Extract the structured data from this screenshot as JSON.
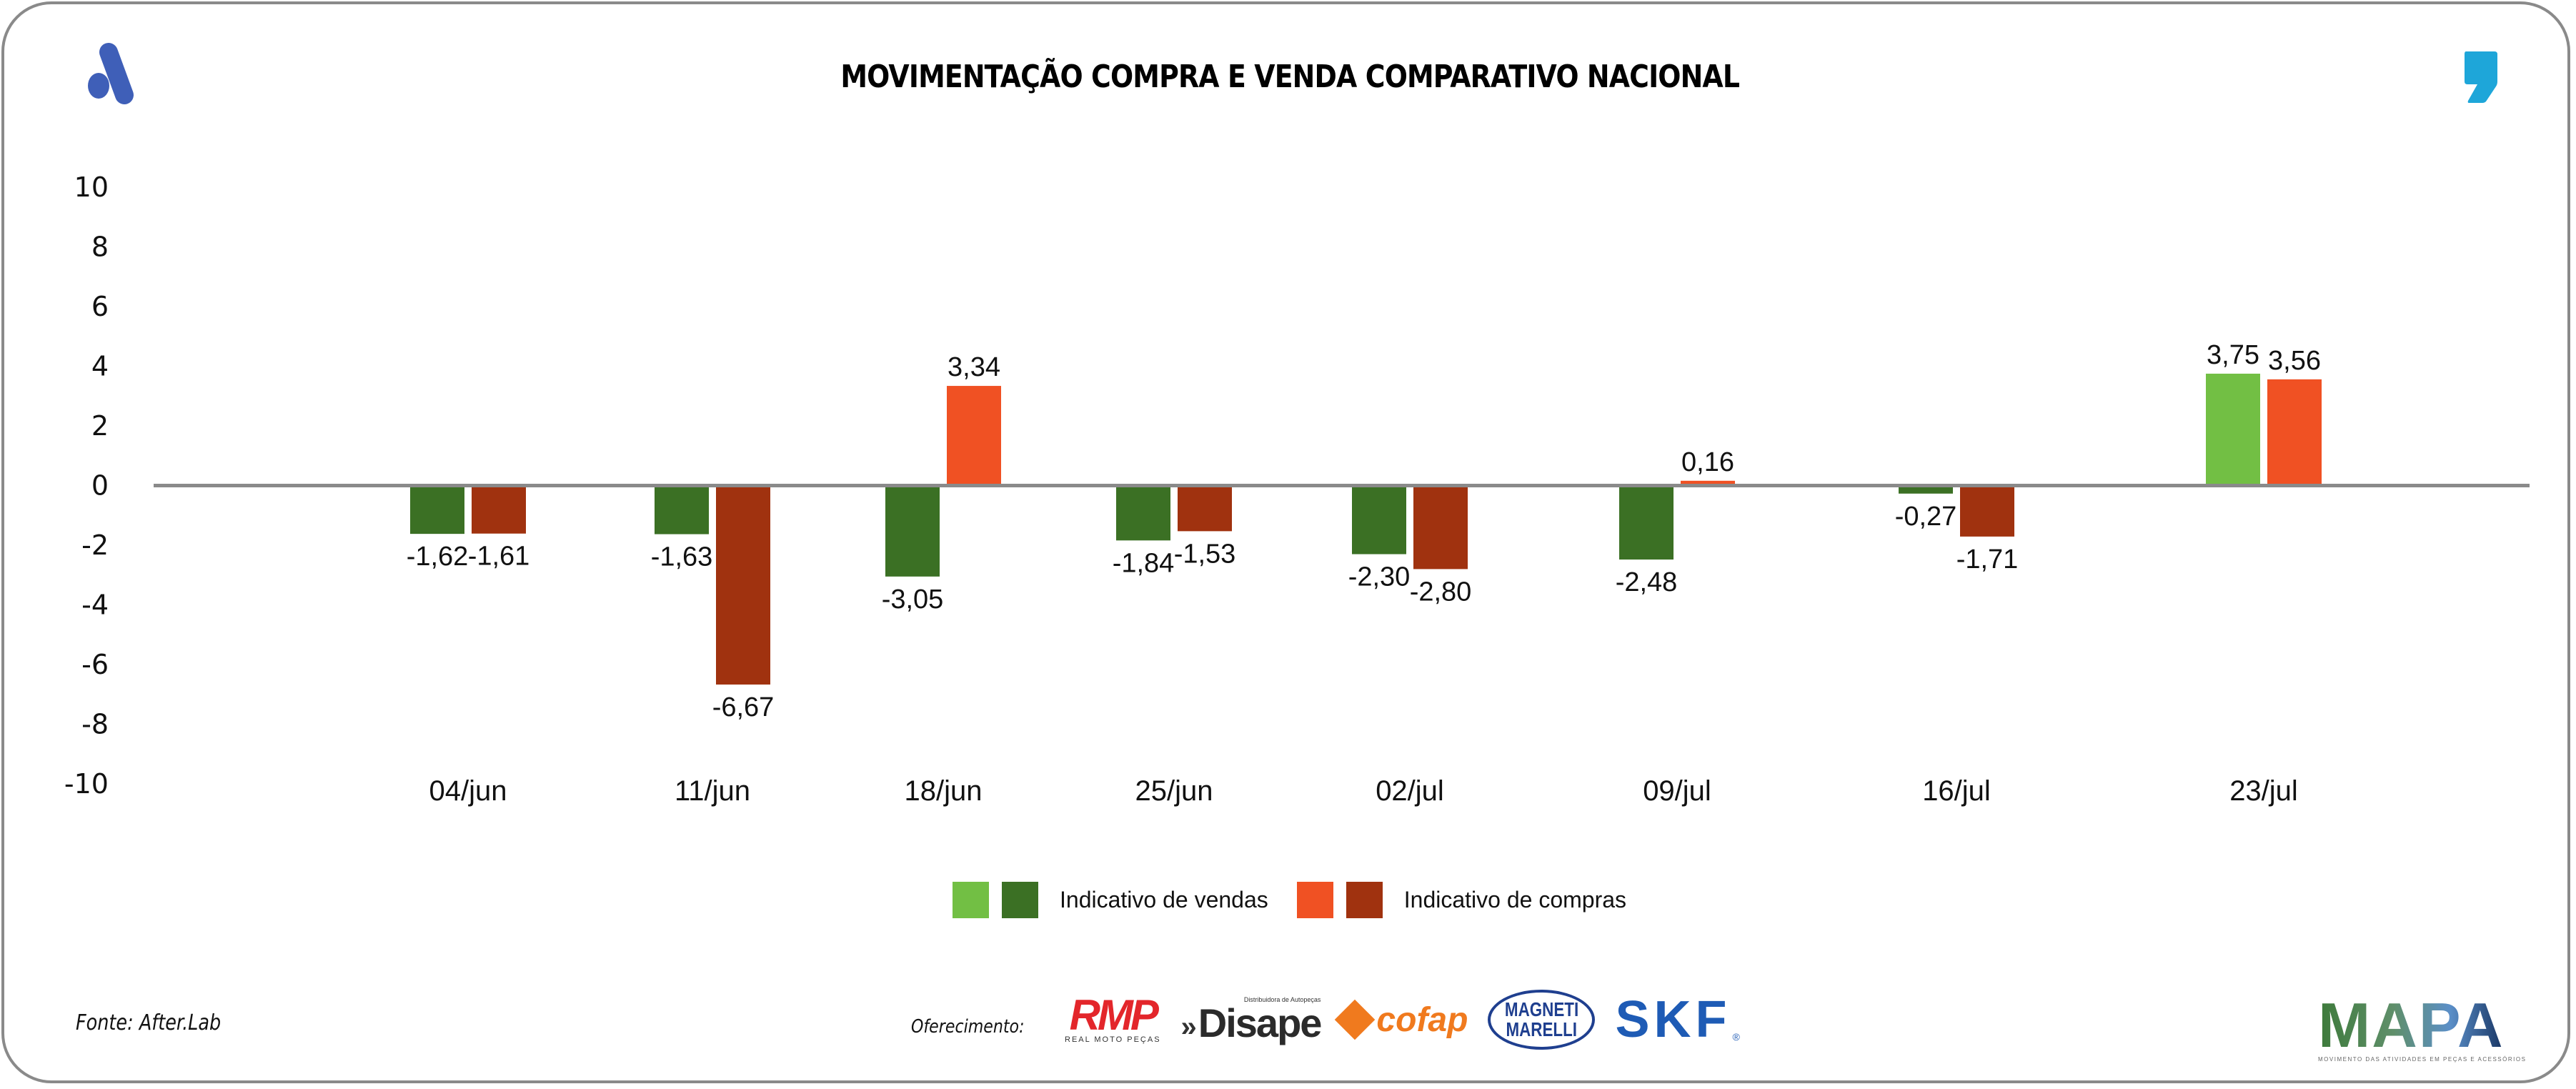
{
  "header": {
    "title": "MOVIMENTAÇÃO COMPRA E VENDA COMPARATIVO NACIONAL",
    "left_logo_icon": "afterlab-a-logo-icon",
    "right_logo_icon": "comma-logo-icon"
  },
  "colors": {
    "vendas_positive": "#72bf44",
    "vendas_negative": "#3b7024",
    "compras_positive": "#f05123",
    "compras_negative": "#a0320f",
    "axis_line": "#8a8a8a",
    "brand_blue": "#3f5fb8",
    "brand_cyan": "#1ea6d9"
  },
  "chart_data": {
    "type": "bar",
    "title": "MOVIMENTAÇÃO COMPRA E VENDA COMPARATIVO NACIONAL",
    "xlabel": "",
    "ylabel": "",
    "ylim": [
      -10,
      10
    ],
    "yticks": [
      10,
      8,
      6,
      4,
      2,
      0,
      -2,
      -4,
      -6,
      -8,
      -10
    ],
    "ytick_labels": [
      "10",
      "8",
      "6",
      "4",
      "2",
      "0",
      "-2",
      "-4",
      "-6",
      "-8",
      "-10"
    ],
    "grid": false,
    "legend_position": "bottom-center",
    "categories": [
      "04/jun",
      "11/jun",
      "18/jun",
      "25/jun",
      "02/jul",
      "09/jul",
      "16/jul",
      "23/jul"
    ],
    "series": [
      {
        "name": "Indicativo de vendas",
        "values": [
          -1.62,
          -1.63,
          -3.05,
          -1.84,
          -2.3,
          -2.48,
          -0.27,
          3.75
        ],
        "labels": [
          "-1,62",
          "-1,63",
          "-3,05",
          "-1,84",
          "-2,30",
          "-2,48",
          "-0,27",
          "3,75"
        ]
      },
      {
        "name": "Indicativo de compras",
        "values": [
          -1.61,
          -6.67,
          3.34,
          -1.53,
          -2.8,
          0.16,
          -1.71,
          3.56
        ],
        "labels": [
          "-1,61",
          "-6,67",
          "3,34",
          "-1,53",
          "-2,80",
          "0,16",
          "-1,71",
          "3,56"
        ]
      }
    ]
  },
  "legend": {
    "items": [
      {
        "label": "Indicativo de vendas",
        "swatches": [
          "#72bf44",
          "#3b7024"
        ]
      },
      {
        "label": "Indicativo de compras",
        "swatches": [
          "#f05123",
          "#a0320f"
        ]
      }
    ]
  },
  "footer": {
    "source": "Fonte: After.Lab",
    "sponsor_label": "Oferecimento:",
    "sponsors": {
      "rmp": {
        "name": "RMP",
        "tagline": "REAL MOTO PEÇAS"
      },
      "disape": {
        "name": "Disape",
        "tagline": "Distribuidora de Autopeças",
        "arrows": "»"
      },
      "cofap": {
        "name": "cofap"
      },
      "magneti": {
        "line1": "MAGNETI",
        "line2": "MARELLI"
      },
      "skf": {
        "name": "SKF",
        "reg": "®"
      }
    },
    "mapa": {
      "name": "MAPA",
      "tagline": "MOVIMENTO DAS ATIVIDADES EM PEÇAS E ACESSÓRIOS"
    }
  }
}
